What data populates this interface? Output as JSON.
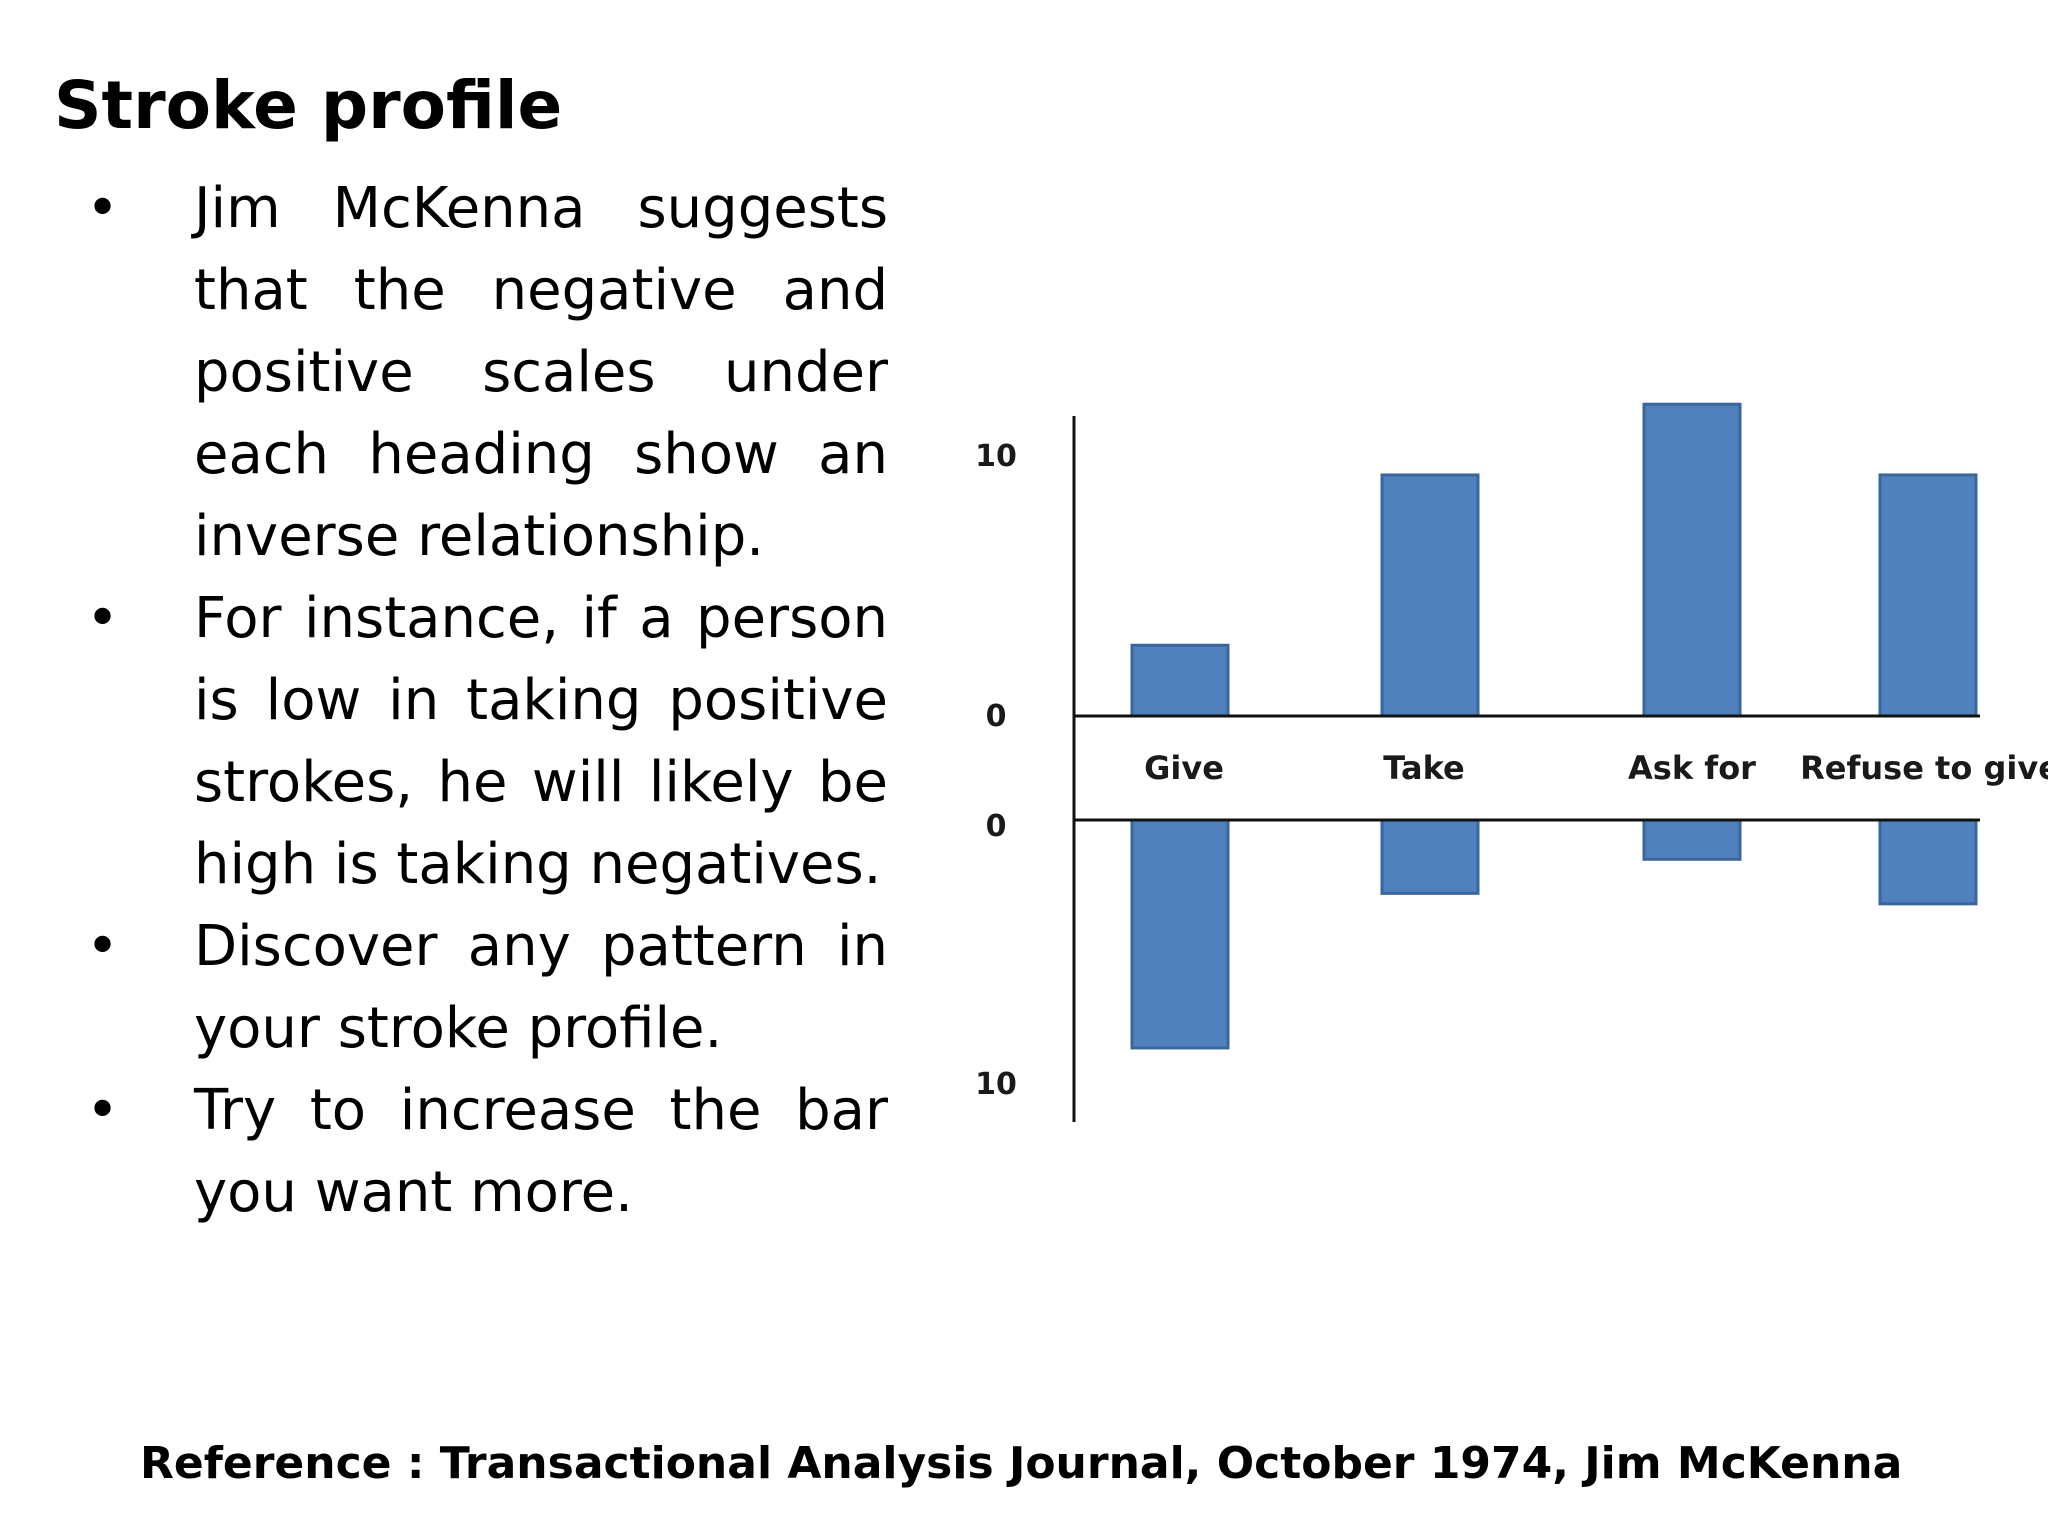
{
  "slide": {
    "title": "Stroke profile",
    "bullets": [
      "Jim McKenna suggests that the negative and positive scales under each heading show an inverse relationship.",
      "For instance, if a person is low in taking positive strokes, he will likely be high is taking negatives.",
      "Discover any pattern in your stroke profile.",
      "Try to increase the bar you want more."
    ],
    "bullet_symbol": "•",
    "reference": "Reference : Transactional Analysis Journal, October 1974, Jim McKenna"
  },
  "chart_data": {
    "type": "bar",
    "categories": [
      "Give",
      "Take",
      "Ask for",
      "Refuse to give"
    ],
    "series": [
      {
        "values": [
          2.7,
          9.2,
          11.9,
          9.2
        ]
      },
      {
        "values": [
          8.7,
          2.8,
          1.5,
          3.2
        ]
      }
    ],
    "y_tick_labels": {
      "positive_top": "10",
      "positive_zero": "0",
      "negative_zero": "0",
      "negative_bottom": "10"
    },
    "ylim_positive": [
      0,
      10
    ],
    "ylim_negative": [
      0,
      10
    ],
    "bar_color": "#4f81bd",
    "bar_edge_color": "#3a66a0",
    "grid": false
  }
}
